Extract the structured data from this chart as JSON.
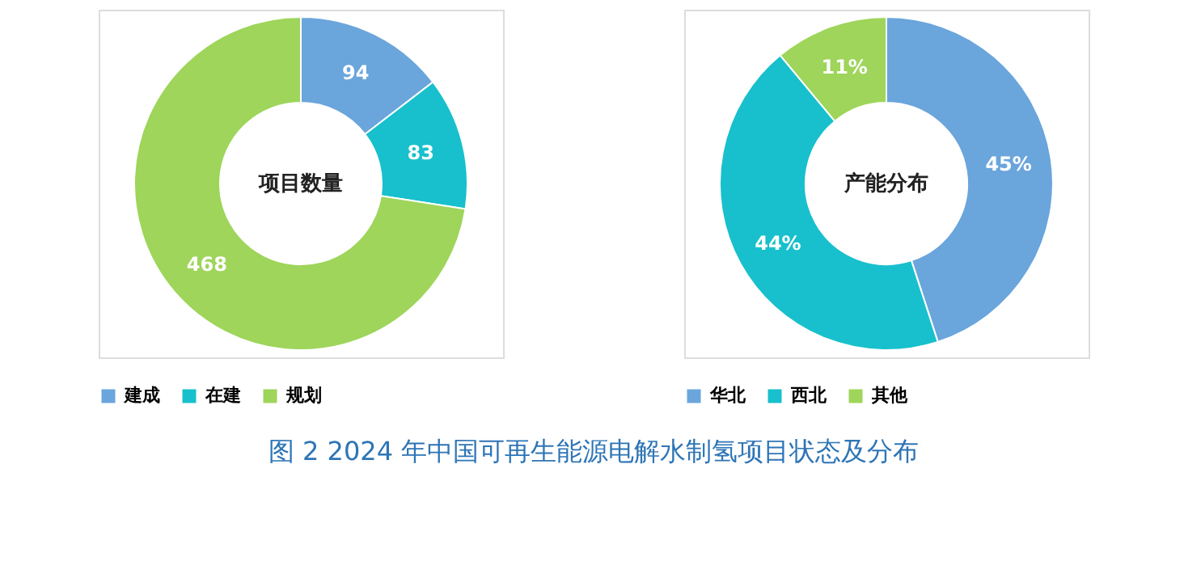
{
  "chart_data": [
    {
      "type": "donut",
      "title": "项目数量",
      "categories": [
        "建成",
        "在建",
        "规划"
      ],
      "values": [
        94,
        83,
        468
      ],
      "colors": [
        "#6aa5dc",
        "#17c0cc",
        "#9ed55a"
      ],
      "data_labels": true,
      "legend": "bottom",
      "annotations": [
        "图 2   2024 年中国可再生能源电解水制氢项目状态及分布"
      ]
    },
    {
      "type": "donut",
      "title": "产能分布",
      "categories": [
        "华北",
        "西北",
        "其他"
      ],
      "values": [
        45,
        44,
        11
      ],
      "colors": [
        "#6aa5dc",
        "#17c0cc",
        "#9ed55a"
      ],
      "value_labels": [
        "45%",
        "44%",
        "11%"
      ],
      "legend": "bottom"
    }
  ]
}
